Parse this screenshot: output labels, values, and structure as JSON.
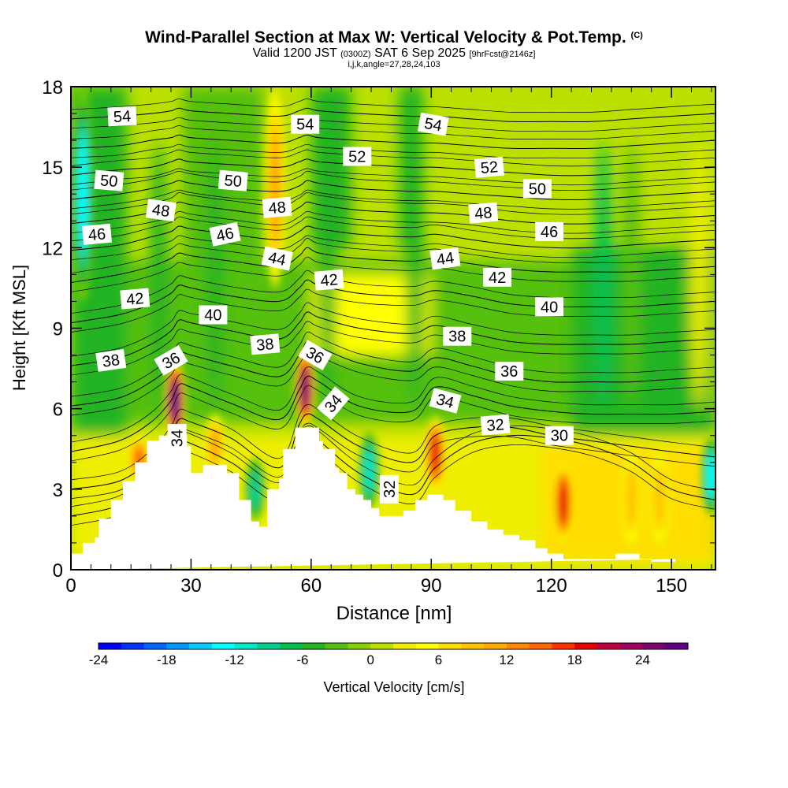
{
  "title": "Wind-Parallel Section at Max W: Vertical Velocity & Pot.Temp.",
  "title_mark": "(C)",
  "subtitle_valid": "Valid 1200 JST",
  "subtitle_utc": "(0300Z)",
  "subtitle_date": "SAT 6 Sep 2025",
  "subtitle_fcst": "[9hrFcst@2146z]",
  "subtitle2": "i,j,k,angle=27,28,24,103",
  "chart_data": {
    "type": "heatmap",
    "xlabel": "Distance [nm]",
    "ylabel": "Height [Kft MSL]",
    "xlim": [
      0,
      161
    ],
    "ylim": [
      0,
      18
    ],
    "xticks": [
      0,
      30,
      60,
      90,
      120,
      150
    ],
    "yticks": [
      0,
      3,
      6,
      9,
      12,
      15,
      18
    ],
    "fill_variable": "Vertical Velocity [cm/s]",
    "colorbar": {
      "label": "Vertical Velocity [cm/s]",
      "min": -24,
      "max": 28,
      "step": 2,
      "tick_values": [
        -24,
        -18,
        -12,
        -6,
        0,
        6,
        12,
        18,
        24
      ],
      "tick_labels": [
        "-24",
        "-18",
        "-12",
        "-6",
        "0",
        "6",
        "12",
        "18",
        "24"
      ],
      "colors": [
        "#0000ff",
        "#0033ff",
        "#0066ff",
        "#0099ff",
        "#00ccff",
        "#00ffff",
        "#00e8c8",
        "#00d090",
        "#00c050",
        "#22b422",
        "#55c010",
        "#88d000",
        "#bbe000",
        "#eeee00",
        "#ffff00",
        "#ffdd00",
        "#ffc400",
        "#ffaa00",
        "#ff8800",
        "#ff6600",
        "#ff3300",
        "#e60000",
        "#c00040",
        "#a00060",
        "#800070",
        "#600080"
      ]
    },
    "updraft_cores": [
      {
        "x": 26,
        "ymin": 4.8,
        "ymax": 7.8,
        "peak": 26
      },
      {
        "x": 58.5,
        "ymin": 5.3,
        "ymax": 8.2,
        "peak": 24
      },
      {
        "x": 91,
        "ymin": 2.9,
        "ymax": 5.7,
        "peak": 18
      },
      {
        "x": 123,
        "ymin": 1.0,
        "ymax": 4.0,
        "peak": 18
      },
      {
        "x": 51,
        "ymin": 10.5,
        "ymax": 18,
        "peak": 10
      },
      {
        "x": 140,
        "ymin": 0.8,
        "ymax": 4.5,
        "peak": 8
      },
      {
        "x": 147,
        "ymin": 0.8,
        "ymax": 4.5,
        "peak": 8
      },
      {
        "x": 17,
        "ymin": 3.2,
        "ymax": 5.0,
        "peak": 14
      },
      {
        "x": 36,
        "ymin": 3.5,
        "ymax": 5.8,
        "peak": 10
      }
    ],
    "downdraft_cores": [
      {
        "x": 3,
        "ymin": 10,
        "ymax": 18,
        "peak": -14
      },
      {
        "x": 74.5,
        "ymin": 2.2,
        "ymax": 5.2,
        "peak": -12
      },
      {
        "x": 46,
        "ymin": 1.8,
        "ymax": 4.2,
        "peak": -10
      },
      {
        "x": 160,
        "ymin": 2.0,
        "ymax": 5.0,
        "peak": -14
      }
    ],
    "terrain_profile": {
      "x": [
        0,
        3,
        3,
        6,
        6,
        7,
        7,
        10,
        10,
        13,
        13,
        16,
        16,
        19,
        19,
        22,
        22,
        29,
        29,
        30,
        30,
        33,
        33,
        39,
        39,
        42,
        42,
        45,
        45,
        47,
        47,
        49,
        49,
        52,
        52,
        53,
        53,
        56,
        56,
        62,
        62,
        63,
        63,
        66,
        66,
        67,
        67,
        69,
        69,
        71,
        71,
        73,
        73,
        75,
        75,
        77,
        77,
        83,
        83,
        86,
        86,
        89,
        89,
        93,
        93,
        96,
        96,
        100,
        100,
        104,
        104,
        108,
        108,
        112,
        112,
        116,
        116,
        119,
        119,
        123,
        123,
        136,
        136,
        142,
        142,
        145,
        145,
        151,
        151,
        161
      ],
      "y": [
        0.6,
        0.6,
        1.0,
        1.0,
        1.2,
        1.2,
        1.9,
        1.9,
        2.6,
        2.6,
        3.3,
        3.3,
        4.0,
        4.0,
        4.8,
        4.8,
        5.0,
        5.0,
        4.6,
        4.6,
        3.6,
        3.6,
        3.9,
        3.9,
        3.6,
        3.6,
        2.6,
        2.6,
        1.8,
        1.8,
        1.6,
        1.6,
        3.0,
        3.0,
        3.4,
        3.4,
        4.5,
        4.5,
        5.3,
        5.3,
        4.8,
        4.8,
        4.5,
        4.5,
        3.8,
        3.8,
        3.6,
        3.6,
        3.0,
        3.0,
        2.8,
        2.8,
        2.6,
        2.6,
        2.3,
        2.3,
        2.0,
        2.0,
        2.2,
        2.2,
        2.6,
        2.6,
        2.8,
        2.8,
        2.6,
        2.6,
        2.2,
        2.2,
        1.8,
        1.8,
        1.5,
        1.5,
        1.3,
        1.3,
        1.1,
        1.1,
        0.8,
        0.8,
        0.6,
        0.6,
        0.4,
        0.4,
        0.6,
        0.6,
        0.4,
        0.4,
        0.3,
        0.3,
        0.4
      ]
    },
    "isentropes": [
      {
        "label": "30",
        "label_x": 122,
        "label_y": 5.0,
        "x": [
          0,
          12,
          20,
          25,
          27,
          30,
          40,
          52,
          57,
          59,
          62,
          72,
          85,
          91,
          100,
          110,
          120,
          130,
          140,
          150,
          161
        ],
        "y": [
          2.0,
          2.4,
          3.3,
          4.2,
          4.8,
          4.7,
          4.0,
          2.9,
          4.6,
          5.0,
          4.8,
          3.6,
          2.8,
          3.8,
          4.7,
          5.0,
          4.9,
          4.6,
          4.0,
          3.0,
          2.6
        ]
      },
      {
        "label": "32",
        "label_x": 110,
        "label_y": 5.4,
        "x": [
          0,
          12,
          20,
          25,
          27,
          30,
          40,
          52,
          57,
          59,
          62,
          72,
          85,
          91,
          100,
          110,
          120,
          130,
          140,
          150,
          161
        ],
        "y": [
          3.0,
          3.3,
          4.1,
          5.0,
          5.6,
          5.5,
          4.9,
          3.8,
          5.4,
          5.8,
          5.6,
          4.6,
          4.0,
          5.0,
          5.3,
          5.3,
          5.0,
          4.8,
          4.6,
          4.4,
          4.2
        ]
      },
      {
        "label": "34",
        "label_x": 93,
        "label_y": 6.3,
        "x": [
          0,
          12,
          20,
          25,
          27,
          30,
          40,
          52,
          57,
          59,
          62,
          72,
          85,
          91,
          100,
          110,
          120,
          130,
          140,
          150,
          161
        ],
        "y": [
          4.4,
          4.8,
          5.5,
          6.3,
          6.9,
          6.8,
          6.2,
          5.6,
          6.7,
          7.2,
          7.0,
          6.1,
          5.9,
          6.8,
          6.5,
          6.1,
          5.9,
          5.8,
          5.8,
          5.8,
          5.9
        ]
      },
      {
        "label": "36",
        "label_x": 110,
        "label_y": 7.3,
        "x": [
          0,
          12,
          20,
          25,
          27,
          30,
          40,
          52,
          57,
          59,
          62,
          72,
          85,
          91,
          100,
          110,
          120,
          130,
          140,
          150,
          161
        ],
        "y": [
          6.1,
          6.4,
          7.0,
          7.6,
          8.1,
          8.0,
          7.6,
          7.2,
          8.0,
          8.5,
          8.3,
          7.7,
          7.4,
          7.9,
          7.6,
          7.2,
          7.0,
          7.0,
          7.0,
          7.1,
          7.2
        ]
      },
      {
        "label": "38",
        "label_x": 96,
        "label_y": 8.7,
        "x": [
          0,
          12,
          20,
          25,
          27,
          30,
          40,
          52,
          57,
          59,
          62,
          72,
          85,
          91,
          100,
          110,
          120,
          130,
          140,
          150,
          161
        ],
        "y": [
          7.6,
          7.9,
          8.4,
          8.9,
          9.3,
          9.2,
          8.9,
          8.6,
          9.2,
          9.6,
          9.4,
          9.0,
          8.8,
          9.1,
          8.8,
          8.5,
          8.4,
          8.4,
          8.4,
          8.5,
          8.6
        ]
      },
      {
        "label": "40",
        "label_x": 119,
        "label_y": 9.8,
        "x": [
          0,
          12,
          20,
          25,
          27,
          30,
          40,
          52,
          57,
          59,
          62,
          72,
          85,
          91,
          100,
          110,
          120,
          130,
          140,
          150,
          161
        ],
        "y": [
          9.2,
          9.5,
          9.9,
          10.3,
          10.6,
          10.5,
          10.2,
          10.0,
          10.5,
          10.8,
          10.6,
          10.3,
          10.2,
          10.4,
          10.2,
          9.9,
          9.8,
          9.8,
          9.8,
          9.9,
          10.0
        ]
      },
      {
        "label": "42",
        "label_x": 106,
        "label_y": 10.9,
        "x": [
          0,
          12,
          20,
          25,
          27,
          30,
          40,
          52,
          57,
          59,
          62,
          72,
          85,
          91,
          100,
          110,
          120,
          130,
          140,
          150,
          161
        ],
        "y": [
          10.7,
          11.0,
          11.3,
          11.6,
          11.8,
          11.7,
          11.5,
          11.3,
          11.7,
          12.0,
          11.8,
          11.6,
          11.5,
          11.6,
          11.4,
          11.2,
          11.1,
          11.1,
          11.1,
          11.2,
          11.3
        ]
      },
      {
        "label": "44",
        "label_x": 93,
        "label_y": 11.6,
        "x": [
          0,
          12,
          20,
          25,
          27,
          30,
          40,
          52,
          57,
          59,
          62,
          72,
          85,
          91,
          100,
          110,
          120,
          130,
          140,
          150,
          161
        ],
        "y": [
          11.9,
          12.1,
          12.4,
          12.6,
          12.8,
          12.7,
          12.5,
          12.3,
          12.6,
          12.8,
          12.7,
          12.5,
          12.4,
          12.5,
          12.3,
          12.1,
          12.0,
          12.0,
          12.1,
          12.2,
          12.3
        ]
      },
      {
        "label": "46",
        "label_x": 119,
        "label_y": 12.6,
        "x": [
          0,
          12,
          20,
          25,
          27,
          30,
          40,
          52,
          57,
          59,
          62,
          72,
          85,
          91,
          100,
          110,
          120,
          130,
          140,
          150,
          161
        ],
        "y": [
          12.9,
          13.1,
          13.3,
          13.5,
          13.7,
          13.6,
          13.4,
          13.2,
          13.5,
          13.7,
          13.6,
          13.4,
          13.3,
          13.3,
          13.2,
          13.0,
          12.9,
          12.9,
          13.0,
          13.1,
          13.2
        ]
      },
      {
        "label": "48",
        "label_x": 103,
        "label_y": 13.4,
        "x": [
          0,
          12,
          20,
          25,
          27,
          30,
          40,
          52,
          57,
          59,
          62,
          72,
          85,
          91,
          100,
          110,
          120,
          130,
          140,
          150,
          161
        ],
        "y": [
          13.8,
          14.0,
          14.2,
          14.4,
          14.5,
          14.4,
          14.2,
          14.1,
          14.3,
          14.5,
          14.4,
          14.2,
          14.1,
          14.1,
          14.0,
          13.9,
          13.8,
          13.8,
          13.9,
          14.0,
          14.1
        ]
      },
      {
        "label": "50",
        "label_x": 116,
        "label_y": 14.2,
        "x": [
          0,
          12,
          20,
          25,
          27,
          30,
          40,
          52,
          57,
          59,
          62,
          72,
          85,
          91,
          100,
          110,
          120,
          130,
          140,
          150,
          161
        ],
        "y": [
          14.7,
          14.9,
          15.0,
          15.2,
          15.3,
          15.2,
          15.1,
          15.0,
          15.2,
          15.3,
          15.2,
          15.1,
          15.0,
          15.0,
          14.9,
          14.8,
          14.7,
          14.7,
          14.8,
          14.9,
          15.0
        ]
      },
      {
        "label": "52",
        "label_x": 103,
        "label_y": 15.4,
        "x": [
          0,
          12,
          20,
          25,
          27,
          30,
          40,
          52,
          57,
          59,
          62,
          72,
          85,
          91,
          100,
          110,
          120,
          130,
          140,
          150,
          161
        ],
        "y": [
          15.7,
          15.8,
          16.0,
          16.1,
          16.2,
          16.1,
          16.0,
          15.9,
          16.1,
          16.2,
          16.1,
          16.0,
          15.9,
          15.9,
          15.8,
          15.7,
          15.7,
          15.7,
          15.8,
          15.9,
          16.0
        ]
      },
      {
        "label": "54",
        "label_x": 90,
        "label_y": 16.6,
        "x": [
          0,
          12,
          20,
          25,
          27,
          30,
          40,
          52,
          57,
          59,
          62,
          72,
          85,
          91,
          100,
          110,
          120,
          130,
          140,
          150,
          161
        ],
        "y": [
          16.8,
          16.9,
          17.0,
          17.1,
          17.2,
          17.1,
          17.0,
          16.9,
          17.1,
          17.2,
          17.1,
          17.0,
          16.9,
          16.9,
          16.8,
          16.7,
          16.7,
          16.7,
          16.8,
          16.9,
          17.0
        ]
      }
    ],
    "contour_labels": [
      {
        "text": "54",
        "x": 12.8,
        "y": 16.9,
        "angle": -3
      },
      {
        "text": "54",
        "x": 58.5,
        "y": 16.6,
        "angle": 0
      },
      {
        "text": "54",
        "x": 90.5,
        "y": 16.6,
        "angle": 10
      },
      {
        "text": "52",
        "x": 71.5,
        "y": 15.4,
        "angle": 0
      },
      {
        "text": "52",
        "x": 104.5,
        "y": 15.0,
        "angle": -5
      },
      {
        "text": "50",
        "x": 9.5,
        "y": 14.5,
        "angle": 5
      },
      {
        "text": "50",
        "x": 40.5,
        "y": 14.5,
        "angle": 5
      },
      {
        "text": "50",
        "x": 116.5,
        "y": 14.2,
        "angle": 0
      },
      {
        "text": "48",
        "x": 22.5,
        "y": 13.4,
        "angle": 8
      },
      {
        "text": "48",
        "x": 51.5,
        "y": 13.5,
        "angle": -5
      },
      {
        "text": "48",
        "x": 103,
        "y": 13.3,
        "angle": -5
      },
      {
        "text": "46",
        "x": 6.5,
        "y": 12.5,
        "angle": -5
      },
      {
        "text": "46",
        "x": 38.5,
        "y": 12.5,
        "angle": -12
      },
      {
        "text": "46",
        "x": 119.5,
        "y": 12.6,
        "angle": 0
      },
      {
        "text": "44",
        "x": 51.5,
        "y": 11.6,
        "angle": 12
      },
      {
        "text": "44",
        "x": 93.5,
        "y": 11.6,
        "angle": -8
      },
      {
        "text": "42",
        "x": 16,
        "y": 10.1,
        "angle": -5
      },
      {
        "text": "42",
        "x": 64.5,
        "y": 10.8,
        "angle": -5
      },
      {
        "text": "42",
        "x": 106.5,
        "y": 10.9,
        "angle": 0
      },
      {
        "text": "40",
        "x": 35.5,
        "y": 9.5,
        "angle": 0
      },
      {
        "text": "40",
        "x": 119.5,
        "y": 9.8,
        "angle": 0
      },
      {
        "text": "38",
        "x": 10,
        "y": 7.8,
        "angle": -8
      },
      {
        "text": "38",
        "x": 48.5,
        "y": 8.4,
        "angle": -5
      },
      {
        "text": "38",
        "x": 96.5,
        "y": 8.7,
        "angle": 0
      },
      {
        "text": "36",
        "x": 25,
        "y": 7.8,
        "angle": -30
      },
      {
        "text": "36",
        "x": 61,
        "y": 8.0,
        "angle": 30
      },
      {
        "text": "36",
        "x": 109.5,
        "y": 7.4,
        "angle": 0
      },
      {
        "text": "34",
        "x": 26.5,
        "y": 4.9,
        "angle": -90
      },
      {
        "text": "34",
        "x": 65.5,
        "y": 6.2,
        "angle": -50
      },
      {
        "text": "34",
        "x": 93.5,
        "y": 6.3,
        "angle": 15
      },
      {
        "text": "32",
        "x": 106,
        "y": 5.4,
        "angle": -5
      },
      {
        "text": "32",
        "x": 79.5,
        "y": 3.0,
        "angle": -90
      },
      {
        "text": "30",
        "x": 122,
        "y": 5.0,
        "angle": 0
      }
    ]
  }
}
